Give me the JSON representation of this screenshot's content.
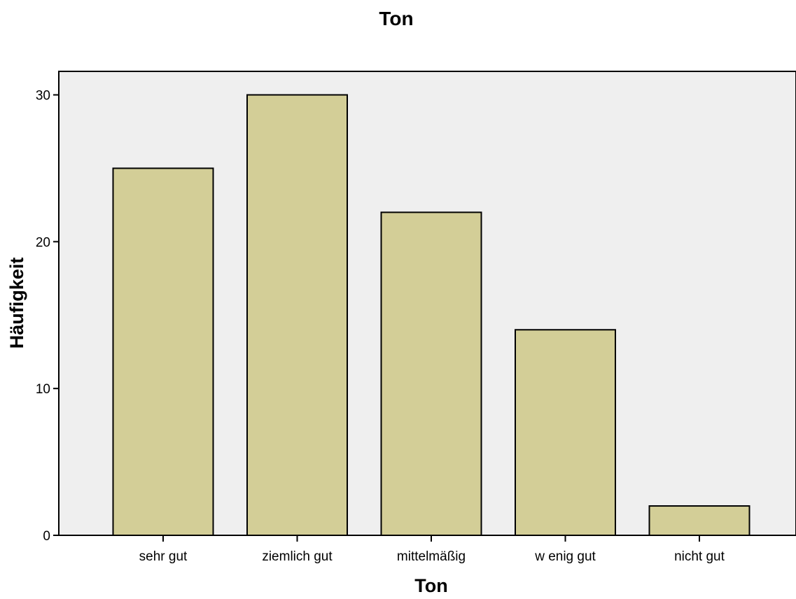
{
  "chart_data": {
    "type": "bar",
    "title": "Ton",
    "xlabel": "Ton",
    "ylabel": "Häufigkeit",
    "categories": [
      "sehr gut",
      "ziemlich gut",
      "mittelmäßig",
      "w enig gut",
      "nicht gut"
    ],
    "values": [
      25,
      30,
      22,
      14,
      2
    ],
    "ylim": [
      0,
      31.6
    ],
    "yticks": [
      "0",
      "10",
      "20",
      "30"
    ],
    "grid": false,
    "legend": "none",
    "colors": {
      "bar_fill": "#d3ce97",
      "bar_stroke": "#000000",
      "plot_background": "#efefef",
      "page_background": "#ffffff"
    }
  }
}
